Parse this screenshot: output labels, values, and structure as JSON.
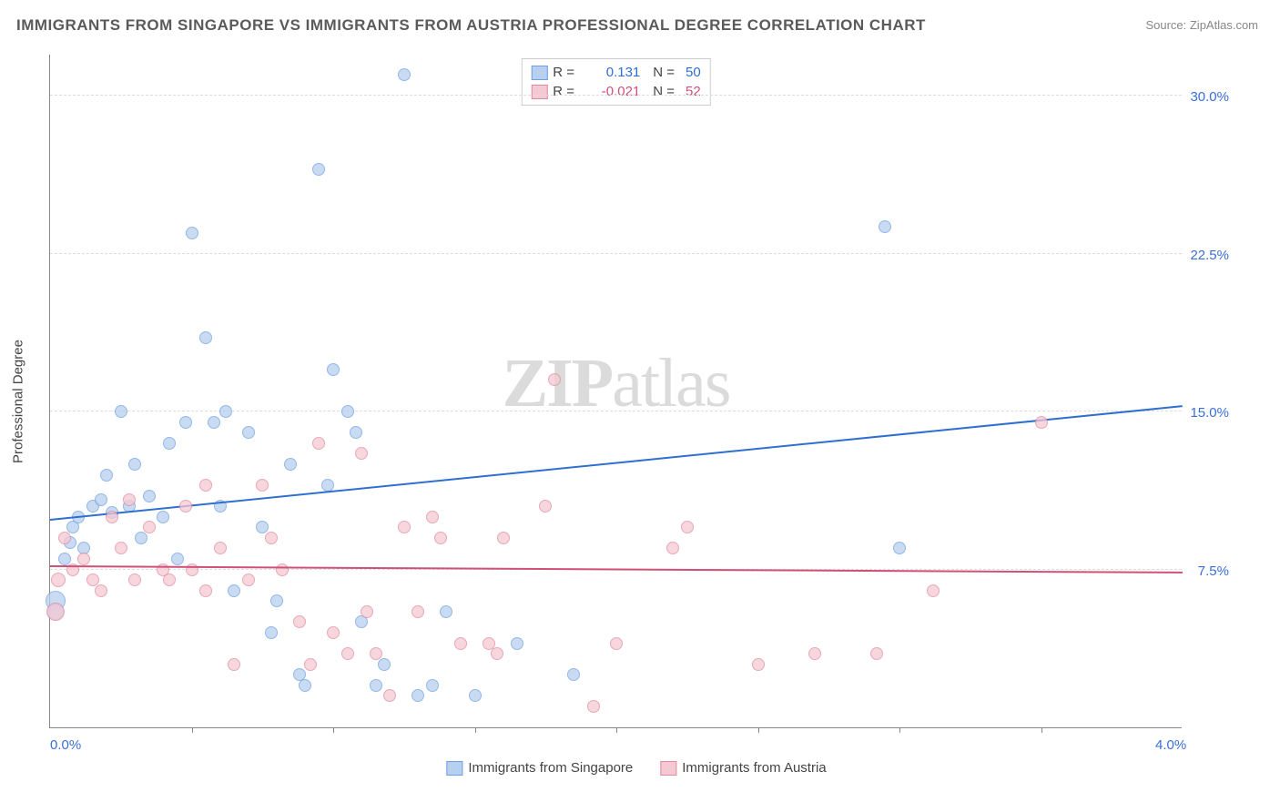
{
  "title": "IMMIGRANTS FROM SINGAPORE VS IMMIGRANTS FROM AUSTRIA PROFESSIONAL DEGREE CORRELATION CHART",
  "source": "Source: ZipAtlas.com",
  "ylabel": "Professional Degree",
  "watermark_a": "ZIP",
  "watermark_b": "atlas",
  "chart": {
    "type": "scatter",
    "xlim": [
      0.0,
      4.0
    ],
    "ylim": [
      0.0,
      32.0
    ],
    "yticks": [
      {
        "v": 7.5,
        "label": "7.5%"
      },
      {
        "v": 15.0,
        "label": "15.0%"
      },
      {
        "v": 22.5,
        "label": "22.5%"
      },
      {
        "v": 30.0,
        "label": "30.0%"
      }
    ],
    "xticks_labels": [
      {
        "v": 0.0,
        "label": "0.0%"
      },
      {
        "v": 4.0,
        "label": "4.0%"
      }
    ],
    "xticks_minor": [
      0.5,
      1.0,
      1.5,
      2.0,
      2.5,
      3.0,
      3.5
    ],
    "background_color": "#ffffff",
    "grid_color": "#dddddd",
    "marker_size": 14,
    "marker_stroke": 1.5,
    "series": [
      {
        "name": "Immigrants from Singapore",
        "color_fill": "#b8d0f0",
        "color_stroke": "#6fa0e0",
        "color_trend": "#2f6fd0",
        "r": "0.131",
        "n": "50",
        "trend": {
          "x1": 0.0,
          "y1": 9.8,
          "x2": 4.0,
          "y2": 15.2
        },
        "points": [
          {
            "x": 0.02,
            "y": 6.0,
            "s": 22
          },
          {
            "x": 0.02,
            "y": 5.5,
            "s": 18
          },
          {
            "x": 0.05,
            "y": 8.0
          },
          {
            "x": 0.07,
            "y": 8.8
          },
          {
            "x": 0.08,
            "y": 9.5
          },
          {
            "x": 0.1,
            "y": 10.0
          },
          {
            "x": 0.12,
            "y": 8.5
          },
          {
            "x": 0.15,
            "y": 10.5
          },
          {
            "x": 0.18,
            "y": 10.8
          },
          {
            "x": 0.2,
            "y": 12.0
          },
          {
            "x": 0.22,
            "y": 10.2
          },
          {
            "x": 0.25,
            "y": 15.0
          },
          {
            "x": 0.28,
            "y": 10.5
          },
          {
            "x": 0.3,
            "y": 12.5
          },
          {
            "x": 0.32,
            "y": 9.0
          },
          {
            "x": 0.35,
            "y": 11.0
          },
          {
            "x": 0.4,
            "y": 10.0
          },
          {
            "x": 0.42,
            "y": 13.5
          },
          {
            "x": 0.45,
            "y": 8.0
          },
          {
            "x": 0.48,
            "y": 14.5
          },
          {
            "x": 0.5,
            "y": 23.5
          },
          {
            "x": 0.55,
            "y": 18.5
          },
          {
            "x": 0.58,
            "y": 14.5
          },
          {
            "x": 0.6,
            "y": 10.5
          },
          {
            "x": 0.62,
            "y": 15.0
          },
          {
            "x": 0.65,
            "y": 6.5
          },
          {
            "x": 0.7,
            "y": 14.0
          },
          {
            "x": 0.75,
            "y": 9.5
          },
          {
            "x": 0.78,
            "y": 4.5
          },
          {
            "x": 0.8,
            "y": 6.0
          },
          {
            "x": 0.85,
            "y": 12.5
          },
          {
            "x": 0.88,
            "y": 2.5
          },
          {
            "x": 0.9,
            "y": 2.0
          },
          {
            "x": 0.95,
            "y": 26.5
          },
          {
            "x": 0.98,
            "y": 11.5
          },
          {
            "x": 1.0,
            "y": 17.0
          },
          {
            "x": 1.05,
            "y": 15.0
          },
          {
            "x": 1.08,
            "y": 14.0
          },
          {
            "x": 1.1,
            "y": 5.0
          },
          {
            "x": 1.15,
            "y": 2.0
          },
          {
            "x": 1.18,
            "y": 3.0
          },
          {
            "x": 1.25,
            "y": 31.0
          },
          {
            "x": 1.3,
            "y": 1.5
          },
          {
            "x": 1.35,
            "y": 2.0
          },
          {
            "x": 1.4,
            "y": 5.5
          },
          {
            "x": 1.85,
            "y": 2.5
          },
          {
            "x": 1.65,
            "y": 4.0
          },
          {
            "x": 2.95,
            "y": 23.8
          },
          {
            "x": 3.0,
            "y": 8.5
          },
          {
            "x": 1.5,
            "y": 1.5
          }
        ]
      },
      {
        "name": "Immigrants from Austria",
        "color_fill": "#f5c9d3",
        "color_stroke": "#e08ba0",
        "color_trend": "#d05078",
        "r": "-0.021",
        "n": "52",
        "trend": {
          "x1": 0.0,
          "y1": 7.6,
          "x2": 4.0,
          "y2": 7.3
        },
        "points": [
          {
            "x": 0.02,
            "y": 5.5,
            "s": 20
          },
          {
            "x": 0.03,
            "y": 7.0,
            "s": 16
          },
          {
            "x": 0.08,
            "y": 7.5
          },
          {
            "x": 0.12,
            "y": 8.0
          },
          {
            "x": 0.15,
            "y": 7.0
          },
          {
            "x": 0.18,
            "y": 6.5
          },
          {
            "x": 0.22,
            "y": 10.0
          },
          {
            "x": 0.25,
            "y": 8.5
          },
          {
            "x": 0.3,
            "y": 7.0
          },
          {
            "x": 0.35,
            "y": 9.5
          },
          {
            "x": 0.4,
            "y": 7.5
          },
          {
            "x": 0.42,
            "y": 7.0
          },
          {
            "x": 0.48,
            "y": 10.5
          },
          {
            "x": 0.5,
            "y": 7.5
          },
          {
            "x": 0.55,
            "y": 11.5
          },
          {
            "x": 0.6,
            "y": 8.5
          },
          {
            "x": 0.65,
            "y": 3.0
          },
          {
            "x": 0.7,
            "y": 7.0
          },
          {
            "x": 0.75,
            "y": 11.5
          },
          {
            "x": 0.78,
            "y": 9.0
          },
          {
            "x": 0.82,
            "y": 7.5
          },
          {
            "x": 0.88,
            "y": 5.0
          },
          {
            "x": 0.92,
            "y": 3.0
          },
          {
            "x": 0.95,
            "y": 13.5
          },
          {
            "x": 1.0,
            "y": 4.5
          },
          {
            "x": 1.05,
            "y": 3.5
          },
          {
            "x": 1.1,
            "y": 13.0
          },
          {
            "x": 1.12,
            "y": 5.5
          },
          {
            "x": 1.15,
            "y": 3.5
          },
          {
            "x": 1.2,
            "y": 1.5
          },
          {
            "x": 1.25,
            "y": 9.5
          },
          {
            "x": 1.3,
            "y": 5.5
          },
          {
            "x": 1.35,
            "y": 10.0
          },
          {
            "x": 1.38,
            "y": 9.0
          },
          {
            "x": 1.45,
            "y": 4.0
          },
          {
            "x": 1.55,
            "y": 4.0
          },
          {
            "x": 1.58,
            "y": 3.5
          },
          {
            "x": 1.75,
            "y": 10.5
          },
          {
            "x": 1.78,
            "y": 16.5
          },
          {
            "x": 1.92,
            "y": 1.0
          },
          {
            "x": 2.0,
            "y": 4.0
          },
          {
            "x": 2.2,
            "y": 8.5
          },
          {
            "x": 2.25,
            "y": 9.5
          },
          {
            "x": 2.5,
            "y": 3.0
          },
          {
            "x": 2.7,
            "y": 3.5
          },
          {
            "x": 2.92,
            "y": 3.5
          },
          {
            "x": 3.12,
            "y": 6.5
          },
          {
            "x": 3.5,
            "y": 14.5
          },
          {
            "x": 1.6,
            "y": 9.0
          },
          {
            "x": 0.05,
            "y": 9.0
          },
          {
            "x": 0.28,
            "y": 10.8
          },
          {
            "x": 0.55,
            "y": 6.5
          }
        ]
      }
    ]
  }
}
